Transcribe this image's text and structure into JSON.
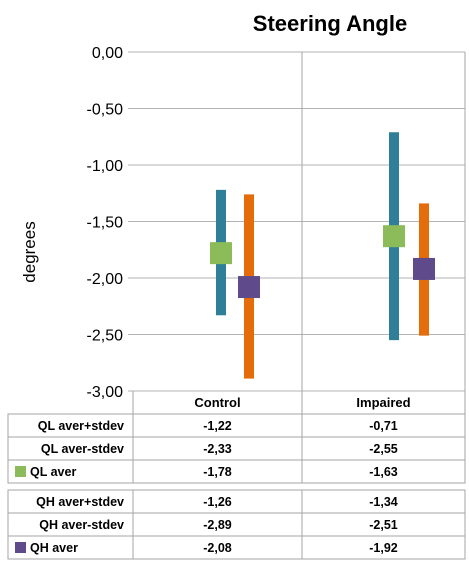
{
  "chart_data": {
    "type": "table",
    "title": "Steering Angle",
    "ylabel": "degrees",
    "ylim": [
      -3.0,
      0.0
    ],
    "ytick_step": 0.5,
    "grid": true,
    "yticks": [
      "0,00",
      "-0,50",
      "-1,00",
      "-1,50",
      "-2,00",
      "-2,50",
      "-3,00"
    ],
    "categories": [
      "Control",
      "Impaired"
    ],
    "colors": {
      "QL_bar": "#2e7f97",
      "QH_bar": "#e46c0a",
      "QL_marker": "#8cbc5a",
      "QH_marker": "#5f4b8b"
    },
    "series": [
      {
        "name": "QL aver+stdev",
        "values": [
          -1.22,
          -0.71
        ],
        "display": [
          "-1,22",
          "-0,71"
        ]
      },
      {
        "name": "QL aver-stdev",
        "values": [
          -2.33,
          -2.55
        ],
        "display": [
          "-2,33",
          "-2,55"
        ]
      },
      {
        "name": "QL aver",
        "values": [
          -1.78,
          -1.63
        ],
        "display": [
          "-1,78",
          "-1,63"
        ],
        "legend_color": "#8cbc5a"
      },
      {
        "name": "QH aver+stdev",
        "values": [
          -1.26,
          -1.34
        ],
        "display": [
          "-1,26",
          "-1,34"
        ]
      },
      {
        "name": "QH aver-stdev",
        "values": [
          -2.89,
          -2.51
        ],
        "display": [
          "-2,89",
          "-2,51"
        ]
      },
      {
        "name": "QH aver",
        "values": [
          -2.08,
          -1.92
        ],
        "display": [
          "-2,08",
          "-1,92"
        ],
        "legend_color": "#5f4b8b"
      }
    ]
  }
}
